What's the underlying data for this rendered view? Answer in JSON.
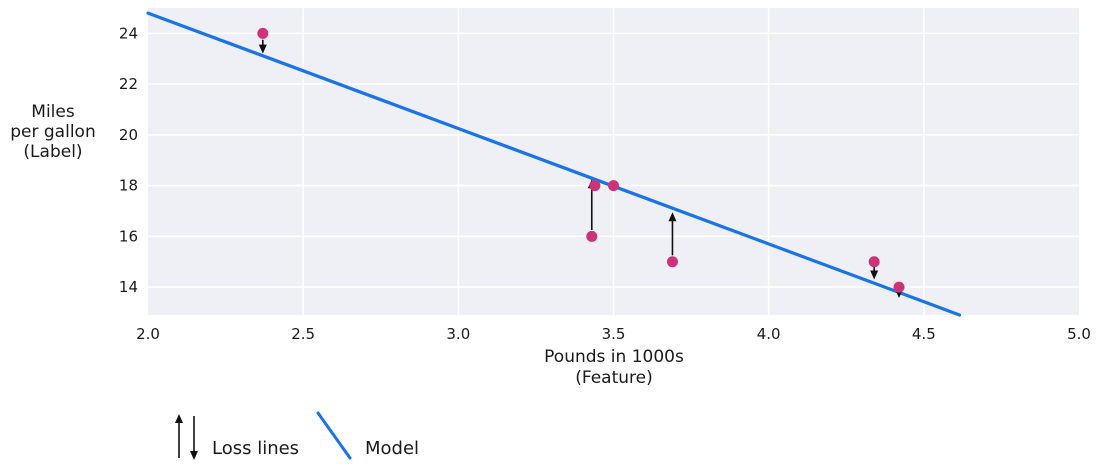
{
  "figure": {
    "background": "#ffffff",
    "text_color": "#1a1a1a"
  },
  "chart_data": {
    "type": "scatter",
    "title": "",
    "xlabel": "Pounds in 1000s\n(Feature)",
    "ylabel": "Miles\nper gallon\n(Label)",
    "xlim": [
      2.0,
      5.0
    ],
    "ylim": [
      12.9,
      25.0
    ],
    "grid": true,
    "legend_position": "bottom",
    "x_ticks": [
      {
        "value": 2.0,
        "label": "2.0"
      },
      {
        "value": 2.5,
        "label": "2.5"
      },
      {
        "value": 3.0,
        "label": "3.0"
      },
      {
        "value": 3.5,
        "label": "3.5"
      },
      {
        "value": 4.0,
        "label": "4.0"
      },
      {
        "value": 4.5,
        "label": "4.5"
      },
      {
        "value": 5.0,
        "label": "5.0"
      }
    ],
    "y_ticks": [
      {
        "value": 24,
        "label": "24"
      },
      {
        "value": 22,
        "label": "22"
      },
      {
        "value": 20,
        "label": "20"
      },
      {
        "value": 18,
        "label": "18"
      },
      {
        "value": 16,
        "label": "16"
      },
      {
        "value": 14,
        "label": "14"
      }
    ],
    "points": [
      {
        "x": 2.37,
        "y": 24
      },
      {
        "x": 3.43,
        "y": 16
      },
      {
        "x": 3.44,
        "y": 18
      },
      {
        "x": 3.5,
        "y": 18
      },
      {
        "x": 3.69,
        "y": 15
      },
      {
        "x": 4.34,
        "y": 15
      },
      {
        "x": 4.42,
        "y": 14
      }
    ],
    "model_line": {
      "slope": -4.55,
      "intercept": 33.9,
      "x_start": 2.0,
      "x_end": 4.615
    },
    "loss_arrows": [
      {
        "x": 2.37,
        "y_from": 23.75,
        "y_to": 23.2,
        "direction": "down"
      },
      {
        "x": 3.43,
        "y_from": 16.25,
        "y_to": 18.25,
        "direction": "up"
      },
      {
        "x": 3.69,
        "y_from": 15.25,
        "y_to": 16.95,
        "direction": "up"
      },
      {
        "x": 4.34,
        "y_from": 14.8,
        "y_to": 14.3,
        "direction": "down"
      },
      {
        "x": 4.42,
        "y_from": 13.85,
        "y_to": 13.57,
        "direction": "down"
      }
    ],
    "colors": {
      "point": "#ce3277",
      "model_line": "#1a73e8",
      "plot_background": "#eef0f6",
      "gridline": "#ffffff",
      "arrow": "#111111"
    }
  },
  "legend": {
    "loss_label": "Loss lines",
    "model_label": "Model"
  }
}
